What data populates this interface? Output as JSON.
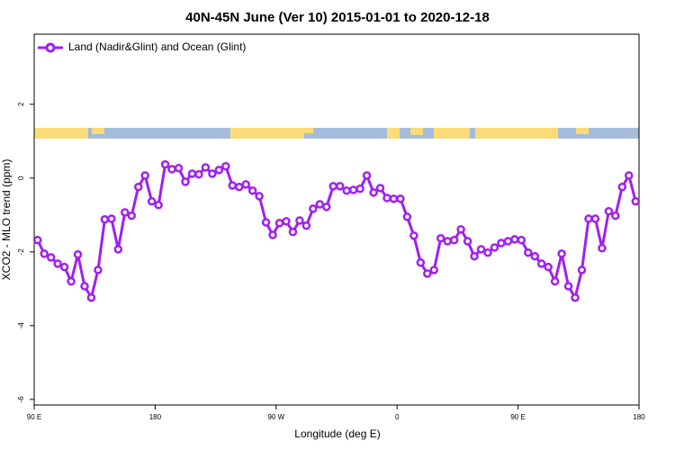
{
  "chart_data": {
    "type": "line",
    "title": "40N-45N June (Ver 10)   2015-01-01 to 2020-12-18",
    "x_label": "Longitude (deg E)",
    "y_label": "XCO2 - MLO trend (ppm)",
    "xlim": [
      90,
      540
    ],
    "ylim": [
      -6.15,
      3.9
    ],
    "xticks": [
      {
        "value": 90,
        "label": "90 E"
      },
      {
        "value": 180,
        "label": "180"
      },
      {
        "value": 270,
        "label": "90 W"
      },
      {
        "value": 360,
        "label": "0"
      },
      {
        "value": 450,
        "label": "90 E"
      },
      {
        "value": 540,
        "label": "180"
      }
    ],
    "yticks": [
      2,
      0,
      -2,
      -4,
      -6
    ],
    "legend_position": "top-left",
    "x": [
      92.5,
      97.5,
      102.5,
      107.5,
      112.5,
      117.5,
      122.5,
      127.5,
      132.5,
      137.5,
      142.5,
      147.5,
      152.5,
      157.5,
      162.5,
      167.5,
      172.5,
      177.5,
      182.5,
      187.5,
      192.5,
      197.5,
      202.5,
      207.5,
      212.5,
      217.5,
      222.5,
      227.5,
      232.5,
      237.5,
      242.5,
      247.5,
      252.5,
      257.5,
      262.5,
      267.5,
      272.5,
      277.5,
      282.5,
      287.5,
      292.5,
      297.5,
      302.5,
      307.5,
      312.5,
      317.5,
      322.5,
      327.5,
      332.5,
      337.5,
      342.5,
      347.5,
      352.5,
      357.5,
      362.5,
      367.5,
      372.5,
      377.5,
      382.5,
      387.5,
      392.5,
      397.5,
      402.5,
      407.5,
      412.5,
      417.5,
      422.5,
      427.5,
      432.5,
      437.5,
      442.5,
      447.5,
      452.5,
      457.5,
      462.5,
      467.5,
      472.5,
      477.5,
      482.5,
      487.5,
      492.5,
      497.5,
      502.5,
      507.5,
      512.5,
      517.5,
      522.5,
      527.5,
      532.5,
      537.5
    ],
    "series": [
      {
        "name": "Land (Nadir&Glint) and Ocean (Glint)",
        "color": "#a020f0",
        "values": [
          -1.68,
          -2.05,
          -2.15,
          -2.32,
          -2.41,
          -2.8,
          -2.07,
          -2.93,
          -3.24,
          -2.49,
          -1.12,
          -1.1,
          -1.93,
          -0.93,
          -1.02,
          -0.24,
          0.07,
          -0.63,
          -0.73,
          0.37,
          0.24,
          0.27,
          -0.1,
          0.12,
          0.1,
          0.29,
          0.12,
          0.22,
          0.32,
          -0.2,
          -0.24,
          -0.17,
          -0.34,
          -0.49,
          -1.2,
          -1.54,
          -1.22,
          -1.17,
          -1.46,
          -1.15,
          -1.29,
          -0.83,
          -0.71,
          -0.78,
          -0.22,
          -0.22,
          -0.34,
          -0.32,
          -0.29,
          0.07,
          -0.39,
          -0.27,
          -0.54,
          -0.56,
          -0.56,
          -1.05,
          -1.56,
          -2.29,
          -2.59,
          -2.49,
          -1.63,
          -1.71,
          -1.68,
          -1.39,
          -1.71,
          -2.12,
          -1.93,
          -2.02,
          -1.88,
          -1.76,
          -1.71,
          -1.66,
          -1.68,
          -2.02,
          -2.12,
          -2.32,
          -2.41,
          -2.8,
          -2.05,
          -2.93,
          -3.24,
          -2.49,
          -1.1,
          -1.1,
          -1.9,
          -0.9,
          -1.02,
          -0.24,
          0.07,
          -0.63
        ]
      }
    ]
  }
}
